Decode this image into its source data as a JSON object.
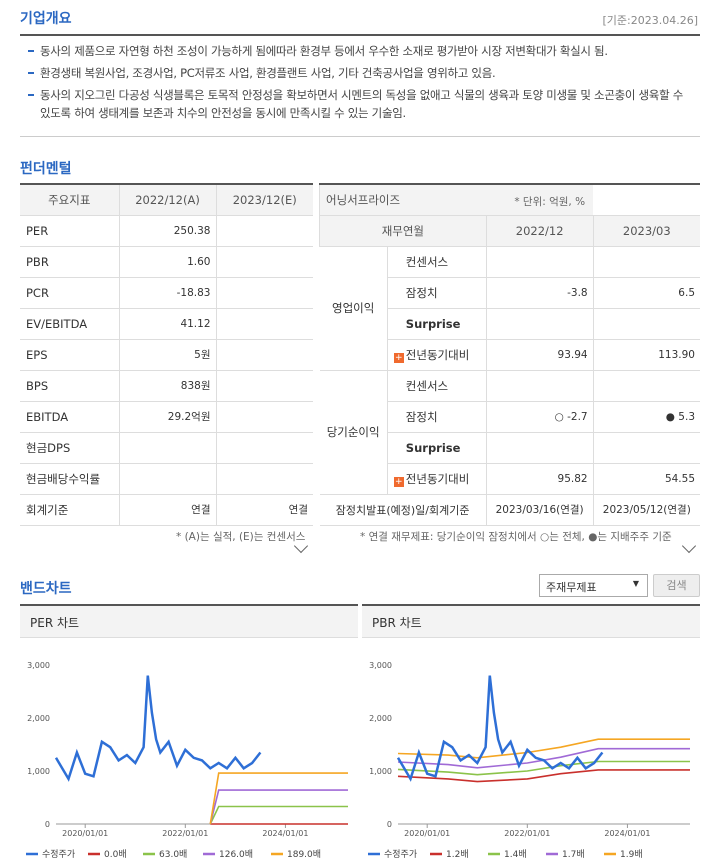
{
  "overview": {
    "title": "기업개요",
    "date": "[기준:2023.04.26]",
    "items": [
      "동사의 제품으로 자연형 하천 조성이 가능하게 됨에따라 환경부 등에서 우수한 소재로 평가받아 시장 저변확대가 확실시 됨.",
      "환경생태 복원사업, 조경사업, PC저류조 사업, 환경플랜트 사업, 기타 건축공사업을 영위하고 있음.",
      "동사의 지오그린 다공성 식생블록은 토목적 안정성을 확보하면서 시멘트의 독성을 없애고 식물의 생육과 토양 미생물 및 소곤충이 생육할 수 있도록 하여 생태계를 보존과 치수의 안전성을 동시에 만족시킬 수 있는 기술임."
    ]
  },
  "fundamentals": {
    "title": "펀더멘털",
    "left": {
      "headers": [
        "주요지표",
        "2022/12(A)",
        "2023/12(E)"
      ],
      "rows": [
        [
          "PER",
          "250.38",
          ""
        ],
        [
          "PBR",
          "1.60",
          ""
        ],
        [
          "PCR",
          "-18.83",
          ""
        ],
        [
          "EV/EBITDA",
          "41.12",
          ""
        ],
        [
          "EPS",
          "5원",
          ""
        ],
        [
          "BPS",
          "838원",
          ""
        ],
        [
          "EBITDA",
          "29.2억원",
          ""
        ],
        [
          "현금DPS",
          "",
          ""
        ],
        [
          "현금배당수익률",
          "",
          ""
        ],
        [
          "회계기준",
          "연결",
          "연결"
        ]
      ],
      "note": "* (A)는 실적, (E)는 컨센서스"
    },
    "right": {
      "title": "어닝서프라이즈",
      "unit": "* 단위: 억원, %",
      "headers": [
        "재무연월",
        "2022/12",
        "2023/03"
      ],
      "groups": [
        {
          "label": "영업이익",
          "rows": [
            {
              "name": "컨센서스",
              "v1": "",
              "v2": ""
            },
            {
              "name": "잠정치",
              "v1": "-3.8",
              "v2": "6.5"
            },
            {
              "name": "Surprise",
              "v1": "",
              "v2": ""
            },
            {
              "name": "전년동기대비",
              "v1": "93.94",
              "v2": "113.90"
            }
          ]
        },
        {
          "label": "당기순이익",
          "rows": [
            {
              "name": "컨센서스",
              "v1": "",
              "v2": ""
            },
            {
              "name": "잠정치",
              "v1": "○ -2.7",
              "v2": "● 5.3"
            },
            {
              "name": "Surprise",
              "v1": "",
              "v2": ""
            },
            {
              "name": "전년동기대비",
              "v1": "95.82",
              "v2": "54.55"
            }
          ]
        }
      ],
      "footer": {
        "label": "잠정치발표(예정)일/회계기준",
        "v1": "2023/03/16(연결)",
        "v2": "2023/05/12(연결)"
      },
      "note": "* 연결 재무제표: 당기순이익 잠정치에서 ○는 전체, ●는 지배주주 기준"
    }
  },
  "band": {
    "title": "밴드차트",
    "select_value": "주재무제표",
    "search_label": "검색"
  },
  "chart_data": [
    {
      "type": "line",
      "title": "PER 차트",
      "ylim": [
        0,
        3000
      ],
      "yticks": [
        "3,000",
        "2,000",
        "1,000",
        "0"
      ],
      "xticks": [
        "2020/01/01",
        "2022/01/01",
        "2024/01/01"
      ],
      "x_range": [
        "2019-06",
        "2025-04"
      ],
      "series": [
        {
          "name": "수정주가",
          "color": "#2e6fd6",
          "x": [
            "2019-06",
            "2019-09",
            "2019-11",
            "2020-01",
            "2020-03",
            "2020-05",
            "2020-07",
            "2020-09",
            "2020-11",
            "2021-01",
            "2021-03",
            "2021-04",
            "2021-05",
            "2021-06",
            "2021-07",
            "2021-09",
            "2021-11",
            "2022-01",
            "2022-03",
            "2022-05",
            "2022-07",
            "2022-09",
            "2022-11",
            "2023-01",
            "2023-03",
            "2023-05",
            "2023-07"
          ],
          "y": [
            1250,
            850,
            1350,
            950,
            900,
            1550,
            1450,
            1200,
            1300,
            1150,
            1450,
            2800,
            2100,
            1600,
            1350,
            1550,
            1100,
            1400,
            1250,
            1200,
            1050,
            1150,
            1050,
            1250,
            1050,
            1150,
            1350
          ]
        },
        {
          "name": "0.0배",
          "color": "#c9302c",
          "x": [
            "2022-07",
            "2025-04"
          ],
          "y": [
            0,
            0
          ]
        },
        {
          "name": "63.0배",
          "color": "#8bc34a",
          "x": [
            "2022-07",
            "2022-09",
            "2025-04"
          ],
          "y": [
            0,
            330,
            330
          ]
        },
        {
          "name": "126.0배",
          "color": "#a06ad6",
          "x": [
            "2022-07",
            "2022-09",
            "2025-04"
          ],
          "y": [
            0,
            640,
            640
          ]
        },
        {
          "name": "189.0배",
          "color": "#f5a623",
          "x": [
            "2022-07",
            "2022-09",
            "2025-04"
          ],
          "y": [
            0,
            960,
            960
          ]
        }
      ]
    },
    {
      "type": "line",
      "title": "PBR 차트",
      "ylim": [
        0,
        3000
      ],
      "yticks": [
        "3,000",
        "2,000",
        "1,000",
        "0"
      ],
      "xticks": [
        "2020/01/01",
        "2022/01/01",
        "2024/01/01"
      ],
      "x_range": [
        "2019-06",
        "2025-04"
      ],
      "series": [
        {
          "name": "수정주가",
          "color": "#2e6fd6",
          "x": [
            "2019-06",
            "2019-09",
            "2019-11",
            "2020-01",
            "2020-03",
            "2020-05",
            "2020-07",
            "2020-09",
            "2020-11",
            "2021-01",
            "2021-03",
            "2021-04",
            "2021-05",
            "2021-06",
            "2021-07",
            "2021-09",
            "2021-11",
            "2022-01",
            "2022-03",
            "2022-05",
            "2022-07",
            "2022-09",
            "2022-11",
            "2023-01",
            "2023-03",
            "2023-05",
            "2023-07"
          ],
          "y": [
            1250,
            850,
            1350,
            950,
            900,
            1550,
            1450,
            1200,
            1300,
            1150,
            1450,
            2800,
            2100,
            1600,
            1350,
            1550,
            1100,
            1400,
            1250,
            1200,
            1050,
            1150,
            1050,
            1250,
            1050,
            1150,
            1350
          ]
        },
        {
          "name": "1.2배",
          "color": "#c9302c",
          "x": [
            "2019-06",
            "2020-06",
            "2021-01",
            "2022-01",
            "2022-09",
            "2023-06",
            "2025-04"
          ],
          "y": [
            900,
            850,
            800,
            850,
            950,
            1020,
            1020
          ]
        },
        {
          "name": "1.4배",
          "color": "#8bc34a",
          "x": [
            "2019-06",
            "2020-06",
            "2021-01",
            "2022-01",
            "2022-09",
            "2023-06",
            "2025-04"
          ],
          "y": [
            1030,
            980,
            930,
            1000,
            1100,
            1180,
            1180
          ]
        },
        {
          "name": "1.7배",
          "color": "#a06ad6",
          "x": [
            "2019-06",
            "2020-06",
            "2021-01",
            "2022-01",
            "2022-09",
            "2023-06",
            "2025-04"
          ],
          "y": [
            1170,
            1120,
            1060,
            1150,
            1260,
            1420,
            1420
          ]
        },
        {
          "name": "1.9배",
          "color": "#f5a623",
          "x": [
            "2019-06",
            "2020-06",
            "2021-01",
            "2022-01",
            "2022-09",
            "2023-06",
            "2025-04"
          ],
          "y": [
            1330,
            1300,
            1250,
            1350,
            1450,
            1600,
            1600
          ]
        }
      ]
    }
  ]
}
